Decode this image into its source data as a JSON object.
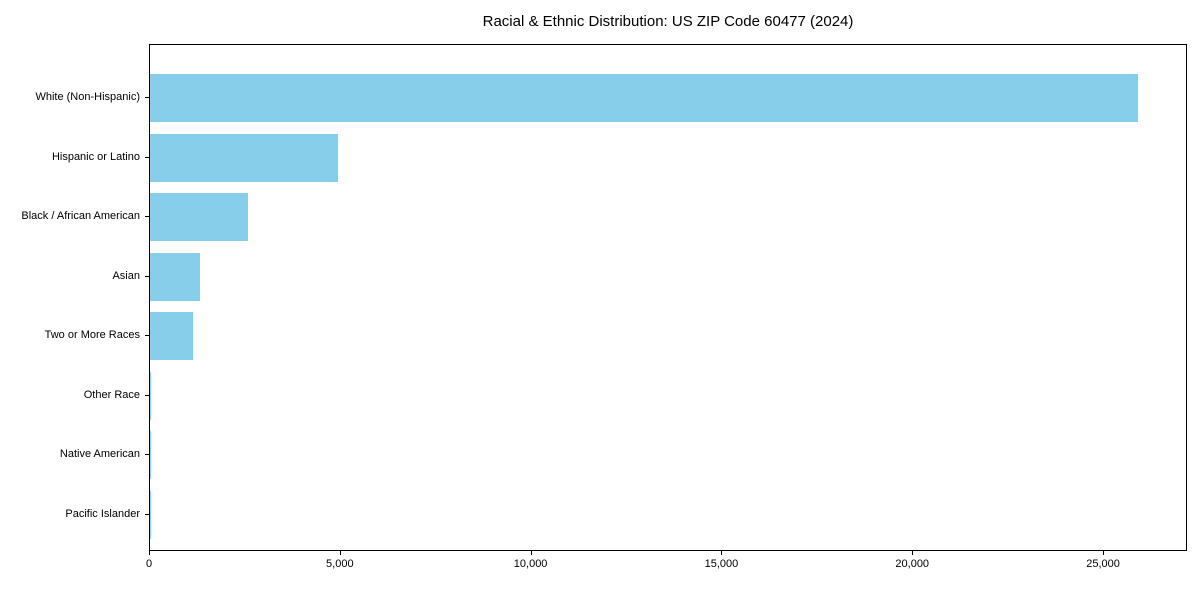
{
  "chart_data": {
    "type": "bar",
    "orientation": "horizontal",
    "title": "Racial & Ethnic Distribution: US ZIP Code 60477 (2024)",
    "categories": [
      "White (Non-Hispanic)",
      "Hispanic or Latino",
      "Black / African American",
      "Asian",
      "Two or More Races",
      "Other Race",
      "Native American",
      "Pacific Islander"
    ],
    "values": [
      25900,
      4930,
      2570,
      1310,
      1130,
      35,
      15,
      5
    ],
    "xlabel": "",
    "ylabel": "",
    "xlim": [
      0,
      27200
    ],
    "x_ticks": [
      0,
      5000,
      10000,
      15000,
      20000,
      25000
    ],
    "x_tick_labels": [
      "0",
      "5,000",
      "10,000",
      "15,000",
      "20,000",
      "25,000"
    ],
    "bar_color": "#87CEEB",
    "text_color": "#000000",
    "grid": false,
    "legend": "none"
  }
}
